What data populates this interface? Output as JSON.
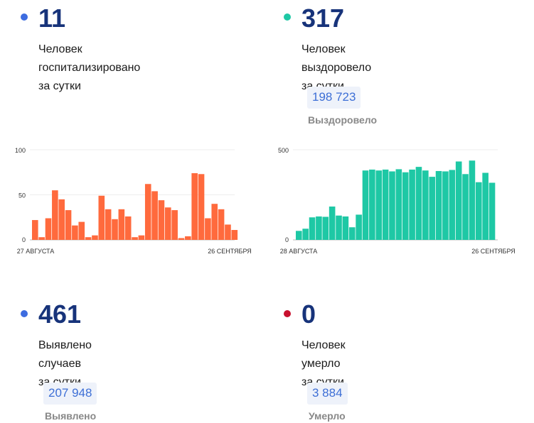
{
  "hospitalized": {
    "number": "11",
    "caption_line1": "Человек госпитализировано",
    "caption_line2": "за сутки",
    "dot_color": "#3d6ce0"
  },
  "recovered": {
    "number": "317",
    "caption_line1": "Человек выздоровело",
    "caption_line2": "за сутки",
    "total": "198 723",
    "total_label": "Выздоровело",
    "dot_color": "#1ec8a5"
  },
  "cases": {
    "number": "461",
    "caption_line1": "Выявлено случаев",
    "caption_line2": "за сутки",
    "total": "207 948",
    "total_label": "Выявлено",
    "dot_color": "#3d6ce0"
  },
  "deaths": {
    "number": "0",
    "caption_line1": "Человек умерло",
    "caption_line2": "за сутки",
    "total": "3 884",
    "total_label": "Умерло",
    "dot_color": "#c8102e"
  },
  "chart_data": [
    {
      "type": "bar",
      "color": "#ff6a3d",
      "x_start_label": "27 АВГУСТА",
      "x_end_label": "26 СЕНТЯБРЯ",
      "yticks": [
        0,
        50,
        100
      ],
      "ylim": [
        0,
        100
      ],
      "grid": true,
      "values": [
        22,
        3,
        24,
        55,
        45,
        33,
        16,
        20,
        3,
        5,
        49,
        34,
        23,
        34,
        26,
        3,
        5,
        62,
        54,
        44,
        36,
        33,
        2,
        4,
        74,
        73,
        24,
        40,
        34,
        17,
        11
      ]
    },
    {
      "type": "bar",
      "color": "#1ec8a5",
      "x_start_label": "28 АВГУСТА",
      "x_end_label": "26 СЕНТЯБРЯ",
      "yticks": [
        0,
        500
      ],
      "ylim": [
        0,
        500
      ],
      "grid": true,
      "values": [
        50,
        62,
        125,
        130,
        128,
        185,
        135,
        130,
        70,
        140,
        385,
        390,
        385,
        390,
        380,
        392,
        375,
        390,
        405,
        385,
        350,
        382,
        380,
        388,
        435,
        365,
        440,
        320,
        372,
        317
      ]
    }
  ]
}
